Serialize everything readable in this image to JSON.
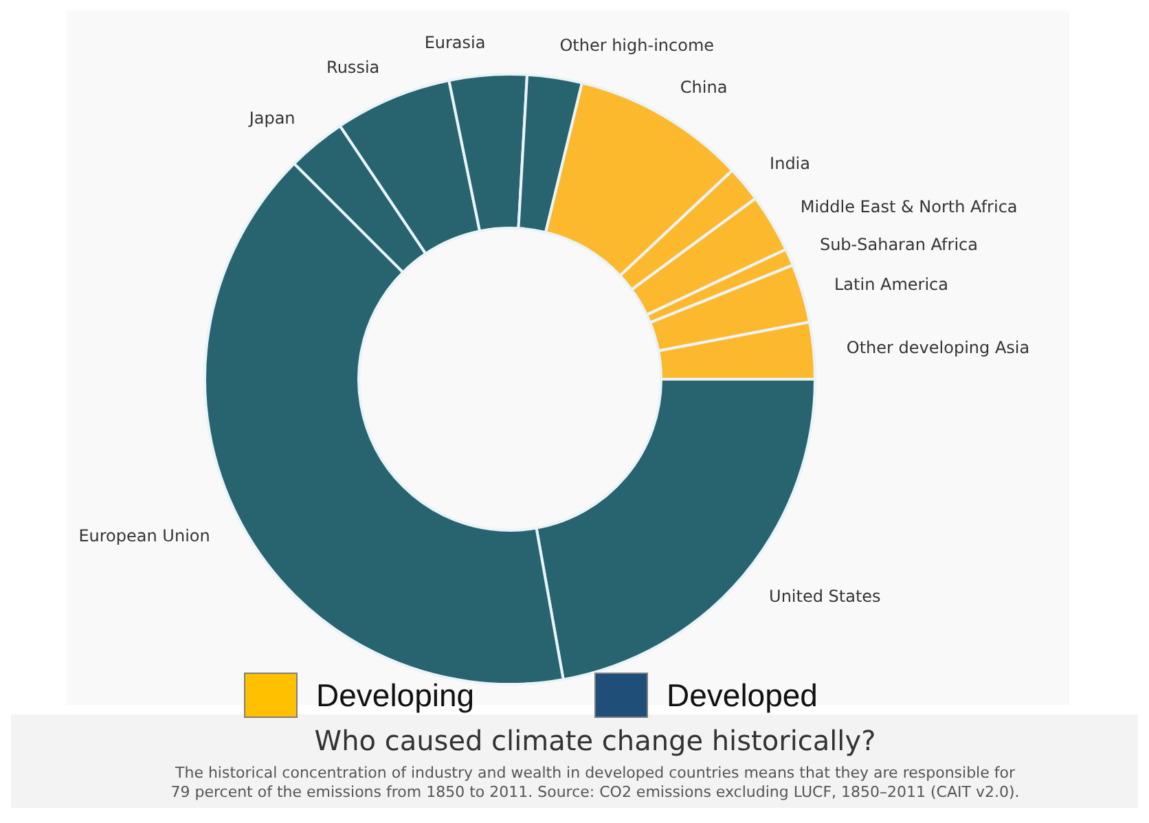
{
  "chart_data": {
    "type": "donut",
    "title": "Who caused climate change historically?",
    "categories": [
      "United States",
      "European Union",
      "Japan",
      "Russia",
      "Eurasia",
      "Other high-income",
      "China",
      "India",
      "Middle East & North Africa",
      "Sub-Saharan Africa",
      "Latin America",
      "Other developing Asia"
    ],
    "values": [
      22.2,
      40.3,
      3.1,
      6.2,
      4.1,
      2.9,
      9.2,
      1.9,
      3.1,
      0.9,
      3.1,
      3.0
    ],
    "colors": [
      "#27646f",
      "#27646f",
      "#27646f",
      "#27646f",
      "#27646f",
      "#27646f",
      "#fdb92e",
      "#fdb92e",
      "#fdb92e",
      "#fdb92e",
      "#fdb92e",
      "#fdb92e"
    ],
    "annotations": [
      "Developing",
      "Developed",
      "The historical concentration of industry and wealth in developed countries means that they are responsible for 79 percent of the emissions from 1850 to 2011. Source: CO2 emissions excluding LUCF, 1850–2011 (CAIT v2.0)."
    ]
  }
}
